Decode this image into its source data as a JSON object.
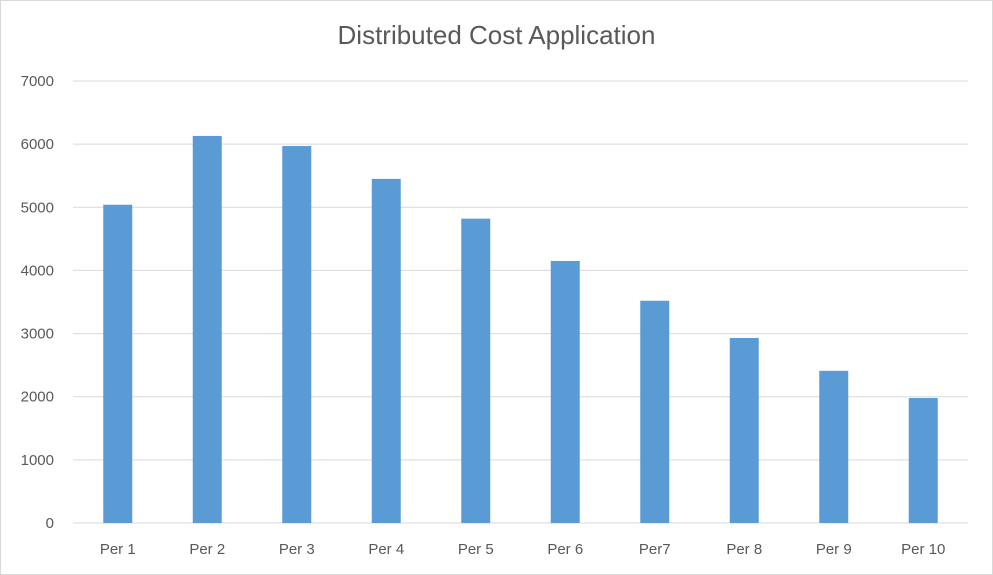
{
  "chart_data": {
    "type": "bar",
    "title": "Distributed Cost Application",
    "xlabel": "",
    "ylabel": "",
    "categories": [
      "Per 1",
      "Per 2",
      "Per 3",
      "Per 4",
      "Per 5",
      "Per 6",
      "Per7",
      "Per 8",
      "Per 9",
      "Per 10"
    ],
    "values": [
      5040,
      6130,
      5970,
      5450,
      4820,
      4150,
      3520,
      2930,
      2410,
      1980
    ],
    "ylim": [
      0,
      7000
    ],
    "yticks": [
      0,
      1000,
      2000,
      3000,
      4000,
      5000,
      6000,
      7000
    ],
    "grid": true,
    "legend": "none",
    "bar_color": "#5b9bd5",
    "grid_color": "#d9d9d9",
    "text_color": "#595959"
  }
}
